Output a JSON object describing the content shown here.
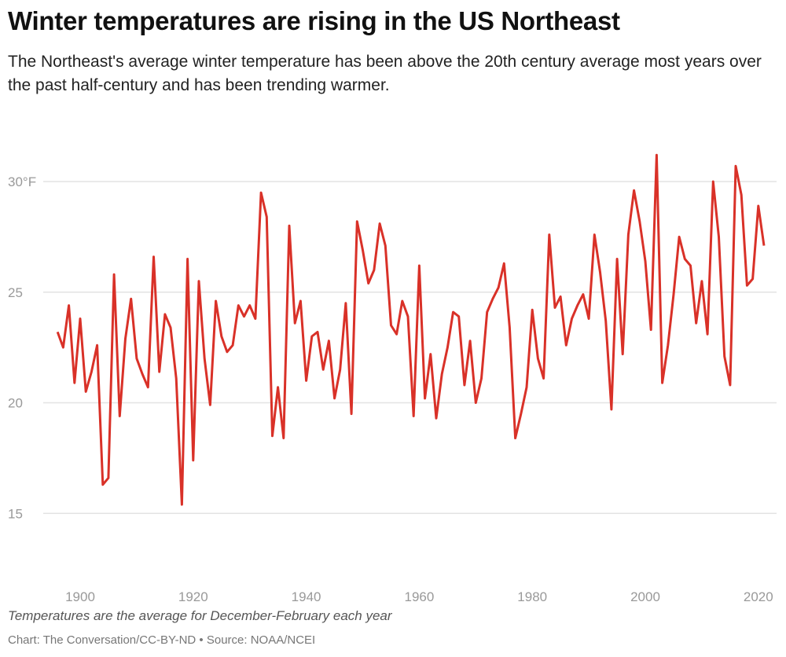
{
  "title": "Winter temperatures are rising in the US Northeast",
  "subtitle": "The Northeast's average winter temperature has been above the 20th century average most years over the past half-century and has been trending warmer.",
  "note": "Temperatures are the average for December-February each year",
  "source": "Chart: The Conversation/CC-BY-ND • Source: NOAA/NCEI",
  "chart_data": {
    "type": "line",
    "title": "",
    "xlabel": "",
    "ylabel": "",
    "color": "#d93128",
    "grid": true,
    "ylim": [
      13,
      32
    ],
    "xlim": [
      1896,
      2021
    ],
    "y_ticks": [
      {
        "value": 30,
        "label": "30°F"
      },
      {
        "value": 25,
        "label": "25"
      },
      {
        "value": 20,
        "label": "20"
      },
      {
        "value": 15,
        "label": "15"
      }
    ],
    "x_ticks": [
      {
        "value": 1900,
        "label": "1900"
      },
      {
        "value": 1920,
        "label": "1920"
      },
      {
        "value": 1940,
        "label": "1940"
      },
      {
        "value": 1960,
        "label": "1960"
      },
      {
        "value": 1980,
        "label": "1980"
      },
      {
        "value": 2000,
        "label": "2000"
      },
      {
        "value": 2020,
        "label": "2020"
      }
    ],
    "x_start": 1896,
    "values": [
      23.2,
      22.5,
      24.4,
      20.9,
      23.8,
      20.5,
      21.4,
      22.6,
      16.3,
      16.6,
      25.8,
      19.4,
      22.9,
      24.7,
      22.0,
      21.3,
      20.7,
      26.6,
      21.4,
      24.0,
      23.4,
      21.1,
      15.4,
      26.5,
      17.4,
      25.5,
      22.0,
      19.9,
      24.6,
      23.0,
      22.3,
      22.6,
      24.4,
      23.9,
      24.4,
      23.8,
      29.5,
      28.4,
      18.5,
      20.7,
      18.4,
      28.0,
      23.6,
      24.6,
      21.0,
      23.0,
      23.2,
      21.5,
      22.8,
      20.2,
      21.5,
      24.5,
      19.5,
      28.2,
      26.9,
      25.4,
      26.0,
      28.1,
      27.1,
      23.5,
      23.1,
      24.6,
      23.9,
      19.4,
      26.2,
      20.2,
      22.2,
      19.3,
      21.3,
      22.5,
      24.1,
      23.9,
      20.8,
      22.8,
      20.0,
      21.1,
      24.1,
      24.7,
      25.2,
      26.3,
      23.4,
      18.4,
      19.5,
      20.7,
      24.2,
      22.0,
      21.1,
      27.6,
      24.3,
      24.8,
      22.6,
      23.8,
      24.4,
      24.9,
      23.8,
      27.6,
      25.9,
      23.7,
      19.7,
      26.5,
      22.2,
      27.6,
      29.6,
      28.2,
      26.4,
      23.3,
      31.2,
      20.9,
      22.6,
      24.9,
      27.5,
      26.5,
      26.2,
      23.6,
      25.5,
      23.1,
      30.0,
      27.5,
      22.1,
      20.8,
      30.7,
      29.4,
      25.3,
      25.6,
      28.9,
      27.1
    ]
  }
}
